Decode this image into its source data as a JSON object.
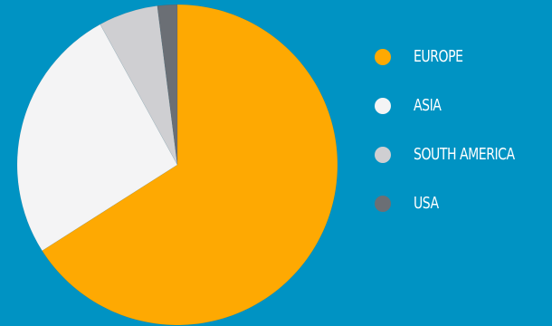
{
  "background_color": "#0093c3",
  "chart_data": {
    "type": "pie",
    "title": "",
    "start_angle_deg": 0,
    "direction": "clockwise",
    "categories": [
      "EUROPE",
      "ASIA",
      "SOUTH AMERICA",
      "USA"
    ],
    "values": [
      66,
      26,
      6,
      2
    ],
    "colors": [
      "#fea902",
      "#f4f4f5",
      "#cfcfd2",
      "#6b6f75"
    ],
    "legend_position": "right"
  }
}
